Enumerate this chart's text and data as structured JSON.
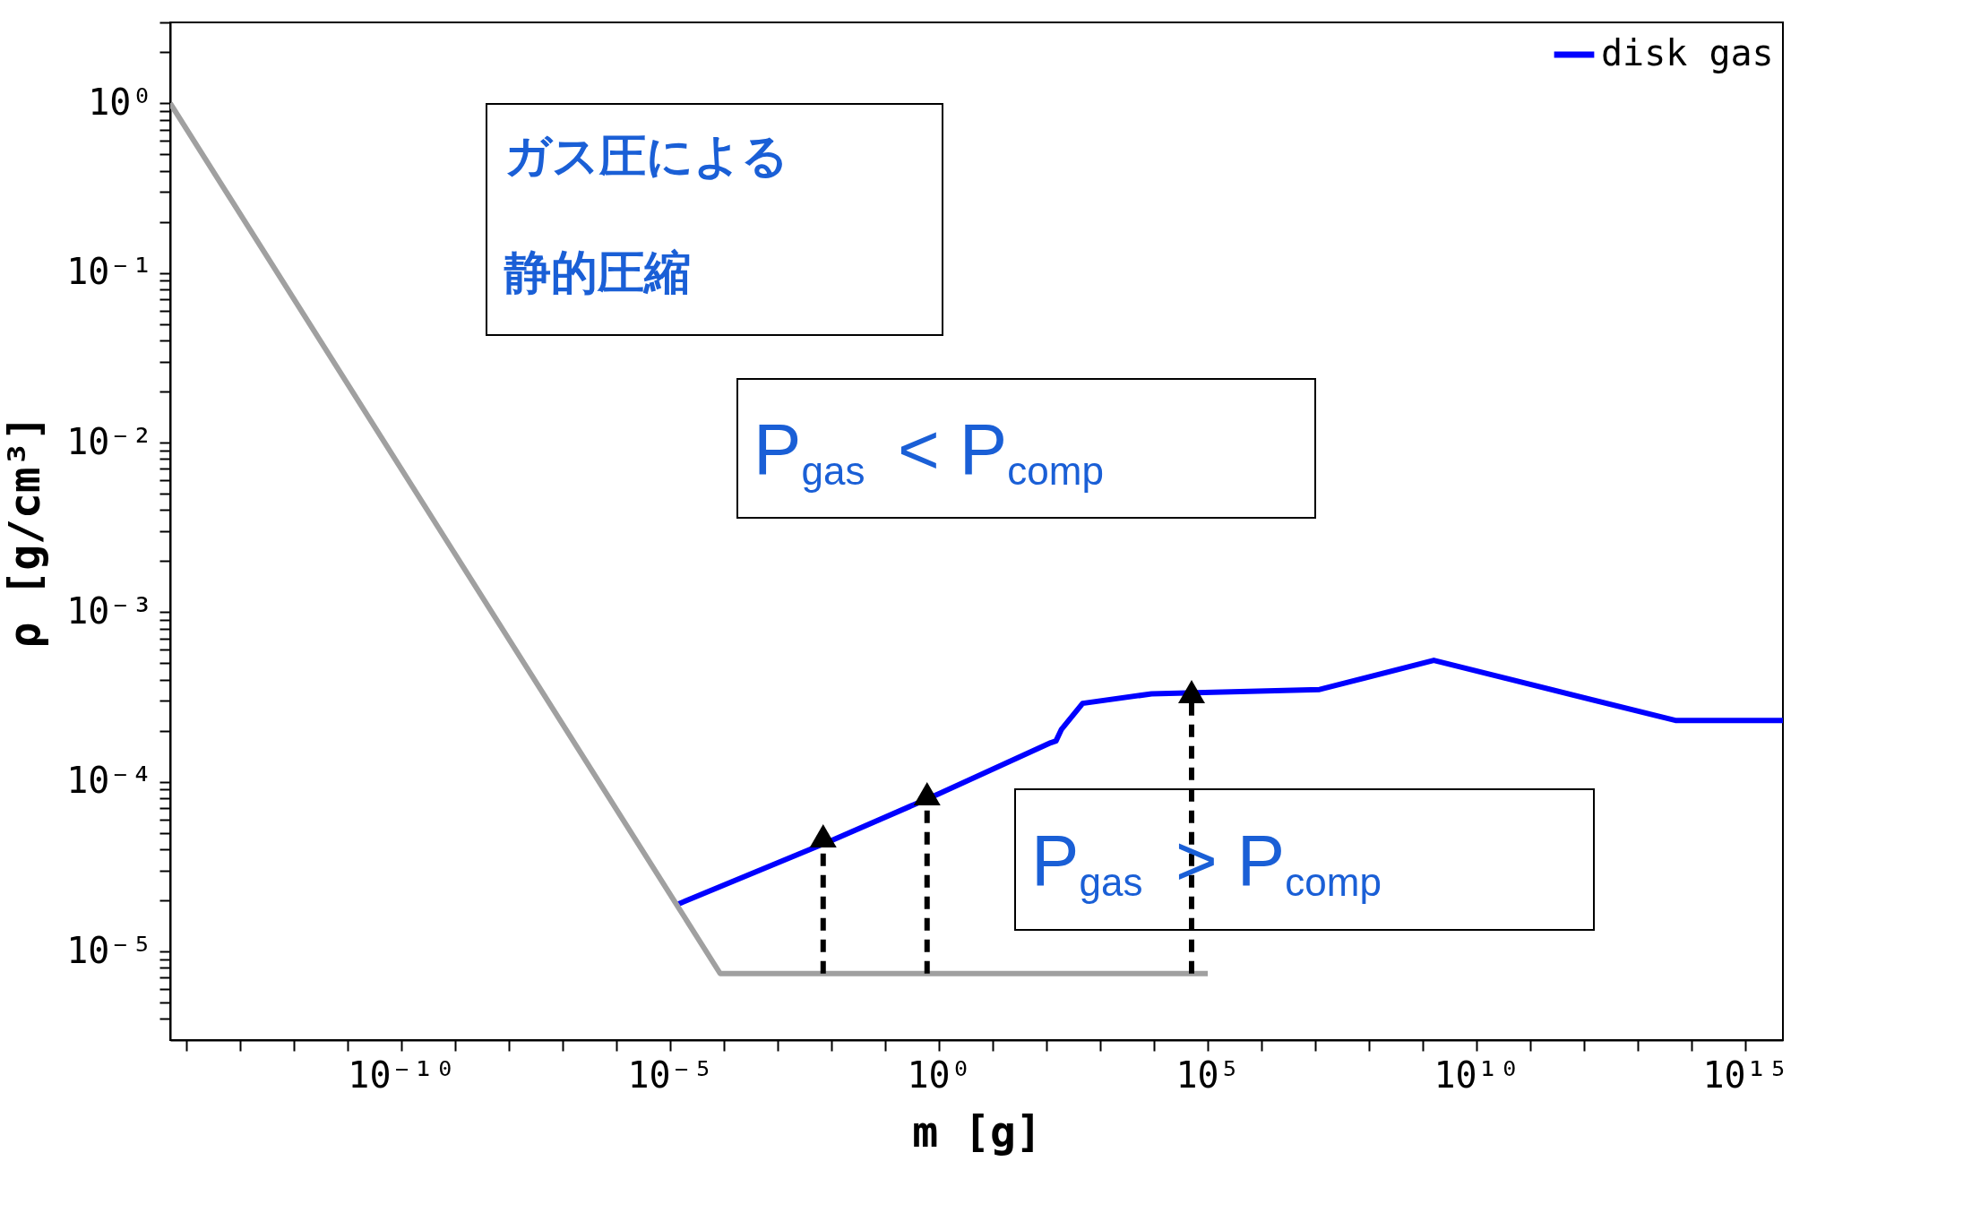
{
  "chart_data": {
    "type": "line",
    "xlabel": "m [g]",
    "ylabel": "ρ [g/cm³]",
    "log": "xy",
    "grid": false,
    "legend": "top right",
    "marker": "none",
    "line_style": "solid",
    "xlim": [
      5e-15,
      5000000000000000.0
    ],
    "ylim": [
      3e-06,
      3
    ],
    "xticks": [
      {
        "value": 1e-14,
        "label": null
      },
      {
        "value": 1e-13,
        "label": null
      },
      {
        "value": 1e-12,
        "label": null
      },
      {
        "value": 1e-11,
        "label": null
      },
      {
        "value": 1e-10,
        "label": "10⁻¹⁰"
      },
      {
        "value": 1e-09,
        "label": null
      },
      {
        "value": 1e-08,
        "label": null
      },
      {
        "value": 1e-07,
        "label": null
      },
      {
        "value": 1e-06,
        "label": null
      },
      {
        "value": 1e-05,
        "label": "10⁻⁵"
      },
      {
        "value": 0.0001,
        "label": null
      },
      {
        "value": 0.001,
        "label": null
      },
      {
        "value": 0.01,
        "label": null
      },
      {
        "value": 0.1,
        "label": null
      },
      {
        "value": 1,
        "label": "10⁰"
      },
      {
        "value": 10,
        "label": null
      },
      {
        "value": 100,
        "label": null
      },
      {
        "value": 1000.0,
        "label": null
      },
      {
        "value": 10000.0,
        "label": null
      },
      {
        "value": 100000.0,
        "label": "10⁵"
      },
      {
        "value": 1000000.0,
        "label": null
      },
      {
        "value": 10000000.0,
        "label": null
      },
      {
        "value": 100000000.0,
        "label": null
      },
      {
        "value": 1000000000.0,
        "label": null
      },
      {
        "value": 10000000000.0,
        "label": "10¹⁰"
      },
      {
        "value": 100000000000.0,
        "label": null
      },
      {
        "value": 1000000000000.0,
        "label": null
      },
      {
        "value": 10000000000000.0,
        "label": null
      },
      {
        "value": 100000000000000.0,
        "label": null
      },
      {
        "value": 1000000000000000.0,
        "label": "10¹⁵"
      }
    ],
    "yticks": [
      {
        "value": 1e-05,
        "label": "10⁻⁵"
      },
      {
        "value": 0.0001,
        "label": "10⁻⁴"
      },
      {
        "value": 0.001,
        "label": "10⁻³"
      },
      {
        "value": 0.01,
        "label": "10⁻²"
      },
      {
        "value": 0.1,
        "label": "10⁻¹"
      },
      {
        "value": 1,
        "label": "10⁰"
      },
      {
        "value": 4e-06,
        "label": null
      },
      {
        "value": 5e-06,
        "label": null
      },
      {
        "value": 6e-06,
        "label": null
      },
      {
        "value": 7e-06,
        "label": null
      },
      {
        "value": 8e-06,
        "label": null
      },
      {
        "value": 9e-06,
        "label": null
      },
      {
        "value": 2e-05,
        "label": null
      },
      {
        "value": 3e-05,
        "label": null
      },
      {
        "value": 4e-05,
        "label": null
      },
      {
        "value": 5e-05,
        "label": null
      },
      {
        "value": 6e-05,
        "label": null
      },
      {
        "value": 7e-05,
        "label": null
      },
      {
        "value": 8e-05,
        "label": null
      },
      {
        "value": 9e-05,
        "label": null
      },
      {
        "value": 0.0002,
        "label": null
      },
      {
        "value": 0.0003,
        "label": null
      },
      {
        "value": 0.0004,
        "label": null
      },
      {
        "value": 0.0005,
        "label": null
      },
      {
        "value": 0.0006,
        "label": null
      },
      {
        "value": 0.0007,
        "label": null
      },
      {
        "value": 0.0008,
        "label": null
      },
      {
        "value": 0.0009,
        "label": null
      },
      {
        "value": 0.002,
        "label": null
      },
      {
        "value": 0.003,
        "label": null
      },
      {
        "value": 0.004,
        "label": null
      },
      {
        "value": 0.005,
        "label": null
      },
      {
        "value": 0.006,
        "label": null
      },
      {
        "value": 0.007,
        "label": null
      },
      {
        "value": 0.008,
        "label": null
      },
      {
        "value": 0.009,
        "label": null
      },
      {
        "value": 0.02,
        "label": null
      },
      {
        "value": 0.03,
        "label": null
      },
      {
        "value": 0.04,
        "label": null
      },
      {
        "value": 0.05,
        "label": null
      },
      {
        "value": 0.06,
        "label": null
      },
      {
        "value": 0.07,
        "label": null
      },
      {
        "value": 0.08,
        "label": null
      },
      {
        "value": 0.09,
        "label": null
      },
      {
        "value": 0.2,
        "label": null
      },
      {
        "value": 0.3,
        "label": null
      },
      {
        "value": 0.4,
        "label": null
      },
      {
        "value": 0.5,
        "label": null
      },
      {
        "value": 0.6,
        "label": null
      },
      {
        "value": 0.7,
        "label": null
      },
      {
        "value": 0.8,
        "label": null
      },
      {
        "value": 0.9,
        "label": null
      },
      {
        "value": 2,
        "label": null
      },
      {
        "value": 3,
        "label": null
      }
    ],
    "series": [
      {
        "name": "disk gas",
        "color": "#0000ff",
        "x": [
          1.4e-05,
          0.01,
          1,
          120,
          150,
          190,
          470,
          9000.0,
          12000000.0,
          1600000000.0,
          50000000000000.0,
          5000000000000000.0
        ],
        "values": [
          1.9e-05,
          4.5e-05,
          8.5e-05,
          0.00017,
          0.000174,
          0.000204,
          0.00029,
          0.00033,
          0.00035,
          0.00052,
          0.00023,
          0.00023
        ]
      },
      {
        "color": "#a0a0a0",
        "x": [
          5e-15,
          8.5e-05,
          100000.0
        ],
        "values": [
          1,
          7.4e-06,
          7.4e-06
        ]
      },
      {
        "color": "#000000",
        "line_style": "dashed",
        "marker": "triangle",
        "x": [
          0.007,
          0.007
        ],
        "values": [
          7.4e-06,
          4.8e-05
        ]
      },
      {
        "color": "#000000",
        "line_style": "dashed",
        "marker": "triangle",
        "x": [
          0.6,
          0.6
        ],
        "values": [
          7.4e-06,
          8.5e-05
        ]
      },
      {
        "color": "#000000",
        "line_style": "dashed",
        "marker": "triangle",
        "x": [
          50000.0,
          50000.0
        ],
        "values": [
          7.4e-06,
          0.00034
        ]
      }
    ],
    "annotations": [
      "ガス圧による",
      "静的圧縮",
      "P$_{gas}$ < P$_{comp}$",
      "P$_{gas}$ > P$_{comp}$"
    ]
  }
}
